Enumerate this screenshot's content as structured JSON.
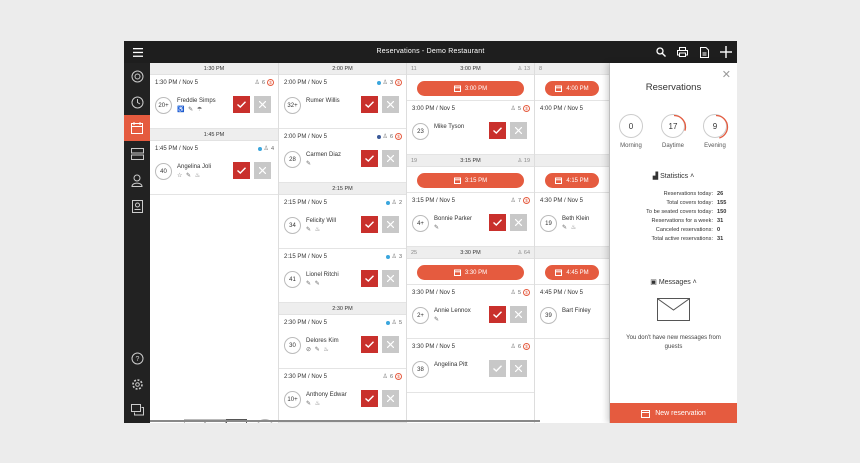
{
  "window": {
    "title": "Reservations - Demo Restaurant"
  },
  "sidebar": [
    "clock-circle-icon",
    "history-icon",
    "calendar-icon",
    "tables-icon",
    "map-pin-icon",
    "guest-card-icon",
    "help-icon",
    "settings-icon",
    "chat-icon"
  ],
  "columns": [
    {
      "items": [
        {
          "type": "header",
          "time": "1:30 PM"
        },
        {
          "type": "res",
          "when": "1:30 PM / Nov 5",
          "count": "6",
          "badge": "$",
          "dot": "",
          "covers": "20+",
          "name": "Freddie Simps",
          "tags": "♿ ✎ ☂",
          "accept": true
        },
        {
          "type": "header",
          "time": "1:45 PM"
        },
        {
          "type": "res",
          "when": "1:45 PM / Nov 5",
          "count": "4",
          "badge": "",
          "dot": "#3aa6dd",
          "covers": "40",
          "name": "Angelina Joli",
          "tags": "☆ ✎ ♨",
          "accept": true
        }
      ]
    },
    {
      "items": [
        {
          "type": "header",
          "time": "2:00 PM"
        },
        {
          "type": "res",
          "when": "2:00 PM / Nov 5",
          "count": "3",
          "badge": "$",
          "dot": "#3aa6dd",
          "covers": "32+",
          "name": "Rumer Willis",
          "tags": "",
          "accept": true
        },
        {
          "type": "res",
          "when": "2:00 PM / Nov 5",
          "count": "6",
          "badge": "$",
          "dot": "#3b5998",
          "covers": "28",
          "name": "Carmen Diaz",
          "tags": "✎",
          "accept": true
        },
        {
          "type": "header",
          "time": "2:15 PM"
        },
        {
          "type": "res",
          "when": "2:15 PM / Nov 5",
          "count": "2",
          "badge": "",
          "dot": "#3aa6dd",
          "covers": "34",
          "name": "Felicity Will",
          "tags": "✎ ♨",
          "accept": true
        },
        {
          "type": "res",
          "when": "2:15 PM / Nov 5",
          "count": "3",
          "badge": "",
          "dot": "#3aa6dd",
          "covers": "41",
          "name": "Lionel Ritchi",
          "tags": "✎ ✎",
          "accept": true
        },
        {
          "type": "header",
          "time": "2:30 PM"
        },
        {
          "type": "res",
          "when": "2:30 PM / Nov 5",
          "count": "5",
          "badge": "",
          "dot": "#3aa6dd",
          "covers": "30",
          "name": "Delores Kim",
          "tags": "⊘ ✎ ♨",
          "accept": true
        },
        {
          "type": "res",
          "when": "2:30 PM / Nov 5",
          "count": "6",
          "badge": "$",
          "dot": "",
          "covers": "10+",
          "name": "Anthony Edwar",
          "tags": "✎ ♨",
          "accept": true
        }
      ]
    },
    {
      "items": [
        {
          "type": "header",
          "time": "3:00 PM",
          "left": "11",
          "right": "13"
        },
        {
          "type": "slot",
          "time": "3:00 PM"
        },
        {
          "type": "res",
          "when": "3:00 PM / Nov 5",
          "count": "5",
          "badge": "$",
          "dot": "",
          "covers": "23",
          "name": "Mike Tyson",
          "tags": "",
          "accept": true
        },
        {
          "type": "header",
          "time": "3:15 PM",
          "left": "19",
          "right": "19"
        },
        {
          "type": "slot",
          "time": "3:15 PM"
        },
        {
          "type": "res",
          "when": "3:15 PM / Nov 5",
          "count": "7",
          "badge": "$",
          "dot": "",
          "covers": "4+",
          "name": "Bonnie Parker",
          "tags": "✎",
          "accept": true
        },
        {
          "type": "header",
          "time": "3:30 PM",
          "left": "25",
          "right": "64"
        },
        {
          "type": "slot",
          "time": "3:30 PM"
        },
        {
          "type": "res",
          "when": "3:30 PM / Nov 5",
          "count": "5",
          "badge": "$",
          "dot": "",
          "covers": "2+",
          "name": "Annie Lennox",
          "tags": "✎",
          "accept": true
        },
        {
          "type": "res",
          "when": "3:30 PM / Nov 5",
          "count": "6",
          "badge": "$",
          "dot": "",
          "covers": "38",
          "name": "Angelina Pitt",
          "tags": "",
          "accept": false
        }
      ]
    },
    {
      "items": [
        {
          "type": "header",
          "time": "",
          "left": "8",
          "right": ""
        },
        {
          "type": "slot",
          "time": "4:00 PM"
        },
        {
          "type": "res",
          "when": "4:00 PM / Nov 5",
          "count": "",
          "badge": "",
          "dot": "",
          "covers": "",
          "name": "",
          "tags": "",
          "accept": false
        },
        {
          "type": "header",
          "time": "",
          "left": "",
          "right": ""
        },
        {
          "type": "slot",
          "time": "4:15 PM"
        },
        {
          "type": "res",
          "when": "4:30 PM / Nov 5",
          "count": "",
          "badge": "",
          "dot": "",
          "covers": "19",
          "name": "Beth Klein",
          "tags": "✎ ♨",
          "accept": false
        },
        {
          "type": "header",
          "time": "",
          "left": "",
          "right": ""
        },
        {
          "type": "slot",
          "time": "4:45 PM"
        },
        {
          "type": "res",
          "when": "4:45 PM / Nov 5",
          "count": "",
          "badge": "",
          "dot": "",
          "covers": "39",
          "name": "Bart Finley",
          "tags": "",
          "accept": false
        }
      ]
    }
  ],
  "panel": {
    "title": "Reservations",
    "gauges": [
      {
        "value": "0",
        "label": "Morning",
        "fraction": 0,
        "color": "#cccccc"
      },
      {
        "value": "17",
        "label": "Daytime",
        "fraction": 0.3,
        "color": "#e55b3f"
      },
      {
        "value": "9",
        "label": "Evening",
        "fraction": 0.45,
        "color": "#e55b3f"
      }
    ],
    "stats_title": "Statistics",
    "stats": [
      {
        "label": "Reservations today:",
        "value": "26"
      },
      {
        "label": "Total covers today:",
        "value": "155"
      },
      {
        "label": "To be seated covers today:",
        "value": "150"
      },
      {
        "label": "Reservations for a week:",
        "value": "31"
      },
      {
        "label": "Canceled reservations:",
        "value": "0"
      },
      {
        "label": "Total active reservations:",
        "value": "31"
      }
    ],
    "messages_title": "Messages",
    "no_messages": "You don't have new messages from guests",
    "new_button": "New reservation"
  },
  "colors": {
    "accent": "#e55b3f",
    "accept": "#c9302c",
    "dark": "#1e1e1e"
  }
}
